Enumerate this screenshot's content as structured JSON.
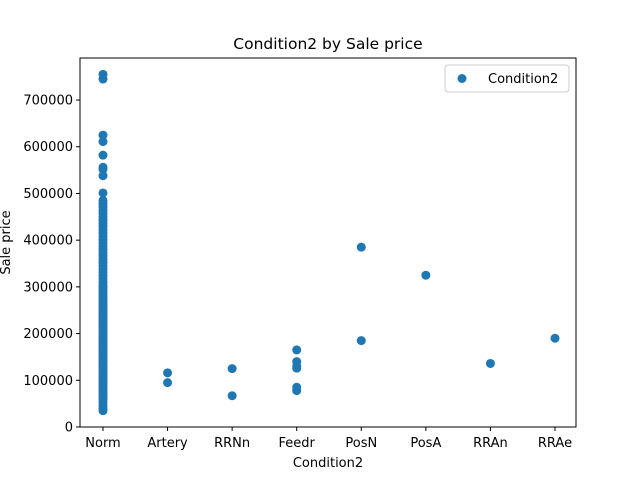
{
  "chart_data": {
    "type": "scatter",
    "title": "Condition2 by Sale price",
    "xlabel": "Condition2",
    "ylabel": "Sale price",
    "categories": [
      "Norm",
      "Artery",
      "RRNn",
      "Feedr",
      "PosN",
      "PosA",
      "RRAn",
      "RRAe"
    ],
    "yticks": [
      0,
      100000,
      200000,
      300000,
      400000,
      500000,
      600000,
      700000
    ],
    "ytick_labels": [
      "0",
      "100000",
      "200000",
      "300000",
      "400000",
      "500000",
      "600000",
      "700000"
    ],
    "ylim": [
      0,
      790000
    ],
    "grid": false,
    "legend_position": "top-right",
    "series": [
      {
        "name": "Condition2",
        "color": "#1f77b4",
        "points": [
          {
            "x": "Norm",
            "y": 35000
          },
          {
            "x": "Norm",
            "y": 39000
          },
          {
            "x": "Norm",
            "y": 45000
          },
          {
            "x": "Norm",
            "y": 52000
          },
          {
            "x": "Norm",
            "y": 58000
          },
          {
            "x": "Norm",
            "y": 63000
          },
          {
            "x": "Norm",
            "y": 68000
          },
          {
            "x": "Norm",
            "y": 73000
          },
          {
            "x": "Norm",
            "y": 78000
          },
          {
            "x": "Norm",
            "y": 83000
          },
          {
            "x": "Norm",
            "y": 88000
          },
          {
            "x": "Norm",
            "y": 93000
          },
          {
            "x": "Norm",
            "y": 98000
          },
          {
            "x": "Norm",
            "y": 103000
          },
          {
            "x": "Norm",
            "y": 108000
          },
          {
            "x": "Norm",
            "y": 113000
          },
          {
            "x": "Norm",
            "y": 118000
          },
          {
            "x": "Norm",
            "y": 123000
          },
          {
            "x": "Norm",
            "y": 128000
          },
          {
            "x": "Norm",
            "y": 133000
          },
          {
            "x": "Norm",
            "y": 138000
          },
          {
            "x": "Norm",
            "y": 143000
          },
          {
            "x": "Norm",
            "y": 148000
          },
          {
            "x": "Norm",
            "y": 153000
          },
          {
            "x": "Norm",
            "y": 158000
          },
          {
            "x": "Norm",
            "y": 163000
          },
          {
            "x": "Norm",
            "y": 168000
          },
          {
            "x": "Norm",
            "y": 173000
          },
          {
            "x": "Norm",
            "y": 178000
          },
          {
            "x": "Norm",
            "y": 183000
          },
          {
            "x": "Norm",
            "y": 188000
          },
          {
            "x": "Norm",
            "y": 193000
          },
          {
            "x": "Norm",
            "y": 198000
          },
          {
            "x": "Norm",
            "y": 203000
          },
          {
            "x": "Norm",
            "y": 208000
          },
          {
            "x": "Norm",
            "y": 213000
          },
          {
            "x": "Norm",
            "y": 218000
          },
          {
            "x": "Norm",
            "y": 223000
          },
          {
            "x": "Norm",
            "y": 228000
          },
          {
            "x": "Norm",
            "y": 233000
          },
          {
            "x": "Norm",
            "y": 238000
          },
          {
            "x": "Norm",
            "y": 243000
          },
          {
            "x": "Norm",
            "y": 248000
          },
          {
            "x": "Norm",
            "y": 253000
          },
          {
            "x": "Norm",
            "y": 258000
          },
          {
            "x": "Norm",
            "y": 263000
          },
          {
            "x": "Norm",
            "y": 268000
          },
          {
            "x": "Norm",
            "y": 273000
          },
          {
            "x": "Norm",
            "y": 278000
          },
          {
            "x": "Norm",
            "y": 283000
          },
          {
            "x": "Norm",
            "y": 288000
          },
          {
            "x": "Norm",
            "y": 293000
          },
          {
            "x": "Norm",
            "y": 298000
          },
          {
            "x": "Norm",
            "y": 303000
          },
          {
            "x": "Norm",
            "y": 310000
          },
          {
            "x": "Norm",
            "y": 317000
          },
          {
            "x": "Norm",
            "y": 324000
          },
          {
            "x": "Norm",
            "y": 331000
          },
          {
            "x": "Norm",
            "y": 338000
          },
          {
            "x": "Norm",
            "y": 345000
          },
          {
            "x": "Norm",
            "y": 352000
          },
          {
            "x": "Norm",
            "y": 359000
          },
          {
            "x": "Norm",
            "y": 366000
          },
          {
            "x": "Norm",
            "y": 373000
          },
          {
            "x": "Norm",
            "y": 380000
          },
          {
            "x": "Norm",
            "y": 387000
          },
          {
            "x": "Norm",
            "y": 394000
          },
          {
            "x": "Norm",
            "y": 401000
          },
          {
            "x": "Norm",
            "y": 408000
          },
          {
            "x": "Norm",
            "y": 415000
          },
          {
            "x": "Norm",
            "y": 422000
          },
          {
            "x": "Norm",
            "y": 429000
          },
          {
            "x": "Norm",
            "y": 436000
          },
          {
            "x": "Norm",
            "y": 443000
          },
          {
            "x": "Norm",
            "y": 450000
          },
          {
            "x": "Norm",
            "y": 457000
          },
          {
            "x": "Norm",
            "y": 464000
          },
          {
            "x": "Norm",
            "y": 471000
          },
          {
            "x": "Norm",
            "y": 478000
          },
          {
            "x": "Norm",
            "y": 485000
          },
          {
            "x": "Norm",
            "y": 501000
          },
          {
            "x": "Norm",
            "y": 538000
          },
          {
            "x": "Norm",
            "y": 552000
          },
          {
            "x": "Norm",
            "y": 556000
          },
          {
            "x": "Norm",
            "y": 582000
          },
          {
            "x": "Norm",
            "y": 611000
          },
          {
            "x": "Norm",
            "y": 625000
          },
          {
            "x": "Norm",
            "y": 745000
          },
          {
            "x": "Norm",
            "y": 755000
          },
          {
            "x": "Artery",
            "y": 95000
          },
          {
            "x": "Artery",
            "y": 116000
          },
          {
            "x": "RRNn",
            "y": 67000
          },
          {
            "x": "RRNn",
            "y": 125000
          },
          {
            "x": "Feedr",
            "y": 78000
          },
          {
            "x": "Feedr",
            "y": 85000
          },
          {
            "x": "Feedr",
            "y": 126000
          },
          {
            "x": "Feedr",
            "y": 130000
          },
          {
            "x": "Feedr",
            "y": 140000
          },
          {
            "x": "Feedr",
            "y": 165000
          },
          {
            "x": "PosN",
            "y": 185000
          },
          {
            "x": "PosN",
            "y": 385000
          },
          {
            "x": "PosA",
            "y": 325000
          },
          {
            "x": "RRAn",
            "y": 136000
          },
          {
            "x": "RRAe",
            "y": 190000
          }
        ]
      }
    ]
  }
}
